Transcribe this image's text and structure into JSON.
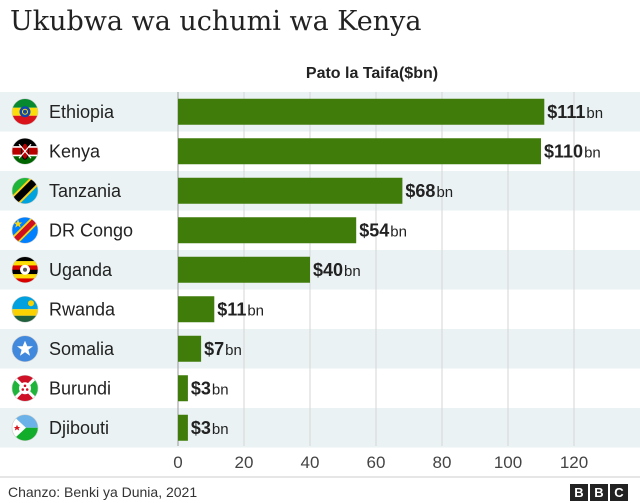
{
  "chart_data": {
    "type": "bar",
    "orientation": "horizontal",
    "title": "Ukubwa wa uchumi wa Kenya",
    "subtitle": "Pato la Taifa($bn)",
    "categories": [
      "Ethiopia",
      "Kenya",
      "Tanzania",
      "DR Congo",
      "Uganda",
      "Rwanda",
      "Somalia",
      "Burundi",
      "Djibouti"
    ],
    "values": [
      111,
      110,
      68,
      54,
      40,
      11,
      7,
      3,
      3
    ],
    "value_prefix": "$",
    "value_unit": "bn",
    "xlim": [
      0,
      130
    ],
    "xticks": [
      0,
      20,
      40,
      60,
      80,
      100,
      120
    ],
    "grid": true,
    "bar_color": "#3f7c0a"
  },
  "footer": {
    "source": "Chanzo: Benki ya Dunia, 2021",
    "logo_letters": [
      "B",
      "B",
      "C"
    ]
  },
  "flags": [
    "ethiopia-flag-icon",
    "kenya-flag-icon",
    "tanzania-flag-icon",
    "dr-congo-flag-icon",
    "uganda-flag-icon",
    "rwanda-flag-icon",
    "somalia-flag-icon",
    "burundi-flag-icon",
    "djibouti-flag-icon"
  ]
}
